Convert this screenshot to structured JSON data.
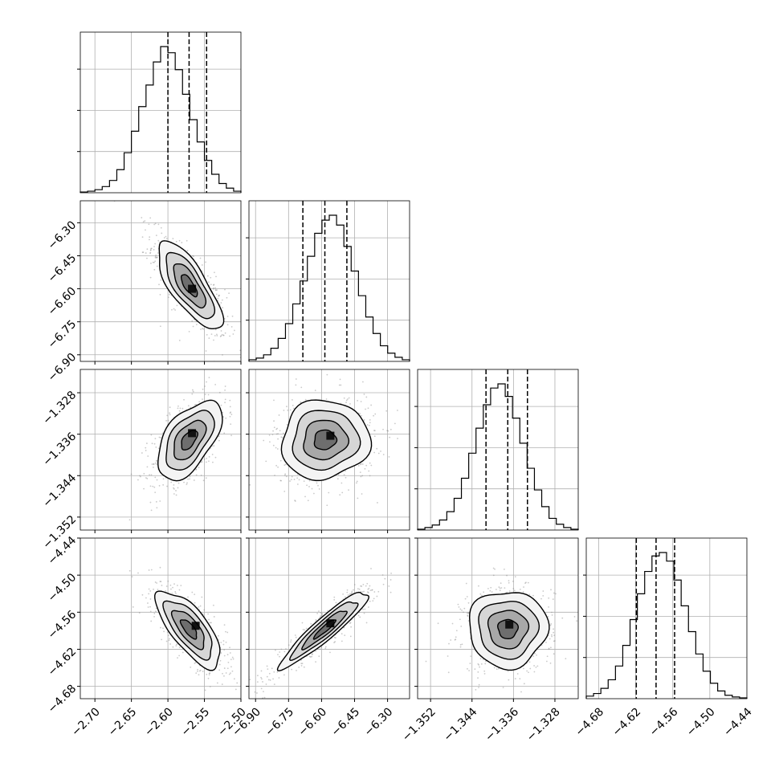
{
  "colors": {
    "axes": "#000000",
    "grid": "#b0b0b0",
    "points": "#8a8a8a",
    "background": "#ffffff"
  },
  "chart_data": {
    "type": "corner",
    "parameters": [
      {
        "range": [
          -2.72,
          -2.5
        ],
        "ticks": [
          "−2.70",
          "−2.65",
          "−2.60",
          "−2.55",
          "−2.50"
        ],
        "quantiles": [
          -2.6,
          -2.571,
          -2.547
        ]
      },
      {
        "range": [
          -6.93,
          -6.2
        ],
        "ticks": [
          "−6.90",
          "−6.75",
          "−6.60",
          "−6.45",
          "−6.30"
        ],
        "quantiles": [
          -6.685,
          -6.585,
          -6.485
        ]
      },
      {
        "range": [
          -1.3545,
          -1.3235
        ],
        "ticks": [
          "−1.352",
          "−1.344",
          "−1.336",
          "−1.328"
        ],
        "quantiles": [
          -1.3413,
          -1.3371,
          -1.3333
        ]
      },
      {
        "range": [
          -4.7,
          -4.44
        ],
        "ticks": [
          "−4.68",
          "−4.62",
          "−4.56",
          "−4.50",
          "−4.44"
        ],
        "quantiles": [
          -4.619,
          -4.587,
          -4.557
        ]
      }
    ],
    "histograms": [
      {
        "edges_range": [
          -2.72,
          -2.5
        ],
        "counts": [
          1,
          2,
          4,
          8,
          16,
          30,
          52,
          80,
          112,
          140,
          170,
          190,
          182,
          160,
          128,
          95,
          66,
          42,
          24,
          12,
          6,
          2
        ]
      },
      {
        "edges_range": [
          -6.93,
          -6.2
        ],
        "counts": [
          2,
          4,
          8,
          16,
          28,
          46,
          70,
          98,
          128,
          156,
          172,
          178,
          166,
          140,
          110,
          80,
          54,
          34,
          19,
          10,
          5,
          2
        ]
      },
      {
        "edges_range": [
          -1.3545,
          -1.3235
        ],
        "counts": [
          1,
          3,
          6,
          12,
          22,
          38,
          62,
          92,
          122,
          150,
          170,
          175,
          160,
          134,
          104,
          74,
          48,
          28,
          14,
          7,
          3,
          1
        ]
      },
      {
        "edges_range": [
          -4.7,
          -4.44
        ],
        "counts": [
          3,
          6,
          12,
          22,
          38,
          62,
          92,
          122,
          148,
          166,
          170,
          160,
          138,
          108,
          78,
          52,
          32,
          18,
          9,
          4,
          2,
          1
        ]
      }
    ],
    "pairs": [
      {
        "row": 1,
        "col": 0,
        "center": [
          -2.571,
          -6.585
        ],
        "sx": 0.022,
        "sy": 0.1,
        "rho": -0.75,
        "peak": [
          -2.567,
          -6.6
        ]
      },
      {
        "row": 2,
        "col": 0,
        "center": [
          -2.571,
          -1.3371
        ],
        "sx": 0.022,
        "sy": 0.0038,
        "rho": 0.55,
        "peak": [
          -2.567,
          -1.3358
        ]
      },
      {
        "row": 2,
        "col": 1,
        "center": [
          -6.585,
          -1.3371
        ],
        "sx": 0.1,
        "sy": 0.0038,
        "rho": 0.05,
        "peak": [
          -6.56,
          -1.3363
        ]
      },
      {
        "row": 3,
        "col": 0,
        "center": [
          -2.571,
          -4.587
        ],
        "sx": 0.022,
        "sy": 0.031,
        "rho": -0.72,
        "peak": [
          -2.562,
          -4.582
        ]
      },
      {
        "row": 3,
        "col": 1,
        "center": [
          -6.585,
          -4.587
        ],
        "sx": 0.1,
        "sy": 0.031,
        "rho": 0.93,
        "peak": [
          -6.56,
          -4.578
        ]
      },
      {
        "row": 3,
        "col": 2,
        "center": [
          -1.3371,
          -4.587
        ],
        "sx": 0.0038,
        "sy": 0.031,
        "rho": 0.0,
        "peak": [
          -1.3368,
          -4.58
        ]
      }
    ],
    "contour_levels_sigma": [
      0.5,
      1.0,
      1.5,
      2.0
    ],
    "grid": true,
    "title": "",
    "legend": ""
  }
}
